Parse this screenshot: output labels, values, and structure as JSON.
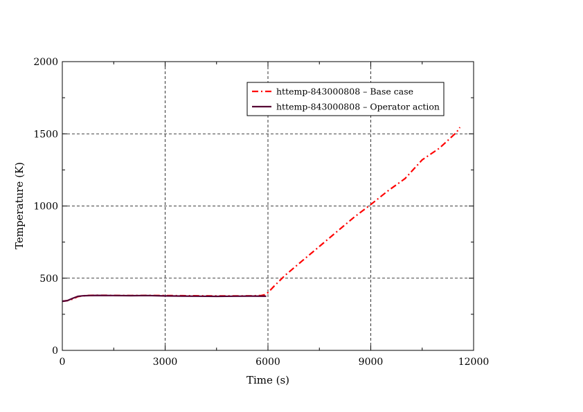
{
  "chart_data": {
    "type": "line",
    "xlabel": "Time (s)",
    "ylabel": "Temperature (K)",
    "xlim": [
      0,
      12000
    ],
    "ylim": [
      0,
      2000
    ],
    "xticks": [
      0,
      3000,
      6000,
      9000,
      12000
    ],
    "yticks": [
      0,
      500,
      1000,
      1500,
      2000
    ],
    "x_minor_step": 1500,
    "y_minor_step": 250,
    "grid": "major, dashed",
    "legend_position": "top-right",
    "series": [
      {
        "name": "httemp-843000808 – Base case",
        "color": "#ff0000",
        "line_style": "dash-dot",
        "x": [
          0,
          150,
          300,
          450,
          600,
          800,
          1000,
          1500,
          2000,
          2500,
          3000,
          3500,
          4000,
          4500,
          5000,
          5500,
          5800,
          5900,
          6000,
          6200,
          6500,
          7000,
          7500,
          8000,
          8500,
          9000,
          9500,
          10000,
          10500,
          11000,
          11500,
          11600
        ],
        "y": [
          340,
          345,
          355,
          372,
          378,
          381,
          382,
          381,
          380,
          381,
          380,
          379,
          378,
          377,
          377,
          378,
          380,
          385,
          400,
          450,
          520,
          620,
          720,
          820,
          920,
          1010,
          1105,
          1190,
          1320,
          1400,
          1510,
          1545
        ]
      },
      {
        "name": "httemp-843000808 – Operator action",
        "color": "#550033",
        "line_style": "solid",
        "x": [
          0,
          150,
          300,
          450,
          600,
          800,
          1000,
          1500,
          2000,
          2500,
          3000,
          3500,
          4000,
          4500,
          5000,
          5500,
          5950
        ],
        "y": [
          340,
          345,
          360,
          374,
          378,
          380,
          381,
          380,
          379,
          380,
          377,
          376,
          375,
          374,
          375,
          376,
          375
        ]
      }
    ]
  }
}
